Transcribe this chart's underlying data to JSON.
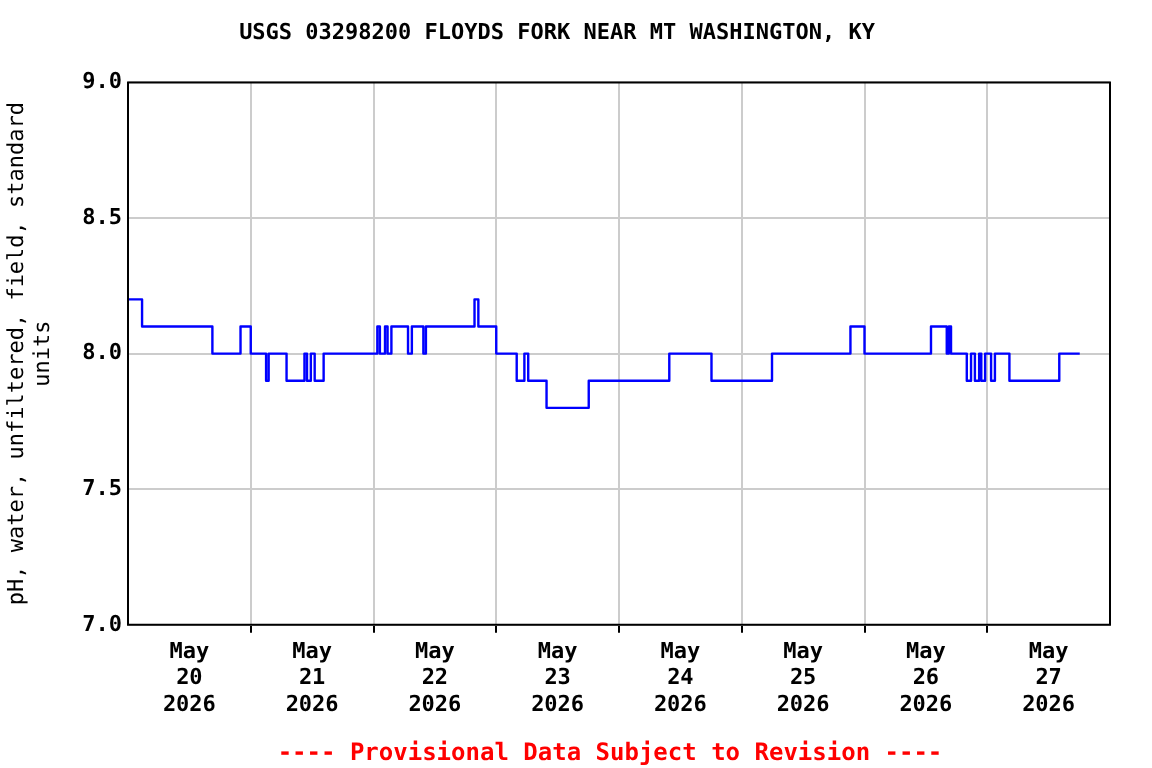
{
  "chart_data": {
    "type": "line",
    "title": "USGS 03298200 FLOYDS FORK NEAR MT WASHINGTON, KY",
    "ylabel": "pH, water, unfiltered, field, standard\nunits",
    "x": [
      "2026-05-20T00:00",
      "2026-05-20T02:45",
      "2026-05-20T02:45",
      "2026-05-20T16:30",
      "2026-05-20T16:30",
      "2026-05-20T22:00",
      "2026-05-20T22:00",
      "2026-05-21T00:00",
      "2026-05-21T00:00",
      "2026-05-21T03:00",
      "2026-05-21T03:00",
      "2026-05-21T03:30",
      "2026-05-21T03:30",
      "2026-05-21T07:00",
      "2026-05-21T07:00",
      "2026-05-21T10:30",
      "2026-05-21T10:30",
      "2026-05-21T11:00",
      "2026-05-21T11:00",
      "2026-05-21T11:45",
      "2026-05-21T11:45",
      "2026-05-21T12:30",
      "2026-05-21T12:30",
      "2026-05-21T14:15",
      "2026-05-21T14:15",
      "2026-05-22T00:45",
      "2026-05-22T00:45",
      "2026-05-22T01:15",
      "2026-05-22T01:15",
      "2026-05-22T02:15",
      "2026-05-22T02:15",
      "2026-05-22T02:45",
      "2026-05-22T02:45",
      "2026-05-22T03:30",
      "2026-05-22T03:30",
      "2026-05-22T06:45",
      "2026-05-22T06:45",
      "2026-05-22T07:30",
      "2026-05-22T07:30",
      "2026-05-22T09:45",
      "2026-05-22T09:45",
      "2026-05-22T10:15",
      "2026-05-22T10:15",
      "2026-05-22T19:45",
      "2026-05-22T19:45",
      "2026-05-22T20:30",
      "2026-05-22T20:30",
      "2026-05-23T00:00",
      "2026-05-23T00:00",
      "2026-05-23T04:00",
      "2026-05-23T04:00",
      "2026-05-23T05:30",
      "2026-05-23T05:30",
      "2026-05-23T06:15",
      "2026-05-23T06:15",
      "2026-05-23T09:50",
      "2026-05-23T09:50",
      "2026-05-23T18:05",
      "2026-05-23T18:05",
      "2026-05-24T09:50",
      "2026-05-24T09:50",
      "2026-05-24T18:05",
      "2026-05-24T18:05",
      "2026-05-25T05:55",
      "2026-05-25T05:55",
      "2026-05-25T21:15",
      "2026-05-25T21:15",
      "2026-05-26T00:00",
      "2026-05-26T00:00",
      "2026-05-26T13:00",
      "2026-05-26T13:00",
      "2026-05-26T16:05",
      "2026-05-26T16:05",
      "2026-05-26T16:30",
      "2026-05-26T16:30",
      "2026-05-26T16:55",
      "2026-05-26T16:55",
      "2026-05-26T20:00",
      "2026-05-26T20:00",
      "2026-05-26T20:50",
      "2026-05-26T20:50",
      "2026-05-26T21:35",
      "2026-05-26T21:35",
      "2026-05-26T22:25",
      "2026-05-26T22:25",
      "2026-05-26T22:50",
      "2026-05-26T22:50",
      "2026-05-26T23:35",
      "2026-05-26T23:35",
      "2026-05-27T00:45",
      "2026-05-27T00:45",
      "2026-05-27T01:30",
      "2026-05-27T01:30",
      "2026-05-27T04:20",
      "2026-05-27T04:20",
      "2026-05-27T14:05",
      "2026-05-27T14:05",
      "2026-05-27T18:05"
    ],
    "series": [
      {
        "color": "#0000ff",
        "values": [
          8.2,
          8.2,
          8.1,
          8.1,
          8.0,
          8.0,
          8.1,
          8.1,
          8.0,
          8.0,
          7.9,
          7.9,
          8.0,
          8.0,
          7.9,
          7.9,
          8.0,
          8.0,
          7.9,
          7.9,
          8.0,
          8.0,
          7.9,
          7.9,
          8.0,
          8.0,
          8.1,
          8.1,
          8.0,
          8.0,
          8.1,
          8.1,
          8.0,
          8.0,
          8.1,
          8.1,
          8.0,
          8.0,
          8.1,
          8.1,
          8.0,
          8.0,
          8.1,
          8.1,
          8.2,
          8.2,
          8.1,
          8.1,
          8.0,
          8.0,
          7.9,
          7.9,
          8.0,
          8.0,
          7.9,
          7.9,
          7.8,
          7.8,
          7.9,
          7.9,
          8.0,
          8.0,
          7.9,
          7.9,
          8.0,
          8.0,
          8.1,
          8.1,
          8.0,
          8.0,
          8.1,
          8.1,
          8.0,
          8.0,
          8.1,
          8.1,
          8.0,
          8.0,
          7.9,
          7.9,
          8.0,
          8.0,
          7.9,
          7.9,
          8.0,
          8.0,
          7.9,
          7.9,
          8.0,
          8.0,
          7.9,
          7.9,
          8.0,
          8.0,
          7.9,
          7.9,
          8.0,
          8.0
        ]
      }
    ],
    "xlim": [
      "2026-05-20T00:00",
      "2026-05-28T00:00"
    ],
    "xticks": [
      {
        "value": "2026-05-20T12:00",
        "label": "May\n20\n2026"
      },
      {
        "value": "2026-05-21T00:00",
        "label": null
      },
      {
        "value": "2026-05-21T12:00",
        "label": "May\n21\n2026"
      },
      {
        "value": "2026-05-22T00:00",
        "label": null
      },
      {
        "value": "2026-05-22T12:00",
        "label": "May\n22\n2026"
      },
      {
        "value": "2026-05-23T00:00",
        "label": null
      },
      {
        "value": "2026-05-23T12:00",
        "label": "May\n23\n2026"
      },
      {
        "value": "2026-05-24T00:00",
        "label": null
      },
      {
        "value": "2026-05-24T12:00",
        "label": "May\n24\n2026"
      },
      {
        "value": "2026-05-25T00:00",
        "label": null
      },
      {
        "value": "2026-05-25T12:00",
        "label": "May\n25\n2026"
      },
      {
        "value": "2026-05-26T00:00",
        "label": null
      },
      {
        "value": "2026-05-26T12:00",
        "label": "May\n26\n2026"
      },
      {
        "value": "2026-05-27T00:00",
        "label": null
      },
      {
        "value": "2026-05-27T12:00",
        "label": "May\n27\n2026"
      }
    ],
    "ylim": [
      7.0,
      9.0
    ],
    "yticks": [
      {
        "value": 7.0,
        "label": "7.0"
      },
      {
        "value": 7.5,
        "label": "7.5"
      },
      {
        "value": 8.0,
        "label": "8.0"
      },
      {
        "value": 8.5,
        "label": "8.5"
      },
      {
        "value": 9.0,
        "label": "9.0"
      }
    ],
    "grid": true,
    "marker": "none",
    "line_style": "solid",
    "annotations": [
      "---- Provisional Data Subject to Revision ----"
    ]
  }
}
